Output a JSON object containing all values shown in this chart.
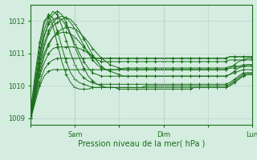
{
  "bg_color": "#d4ede0",
  "grid_color": "#c0c8d0",
  "line_color": "#1a6e1a",
  "marker": "+",
  "ylim": [
    1008.8,
    1012.5
  ],
  "yticks": [
    1009,
    1010,
    1011,
    1012
  ],
  "xlabel": "Pression niveau de la mer( hPa )",
  "xtick_labels": [
    "",
    "Sam",
    "",
    "Dim",
    "",
    "Lun"
  ],
  "xtick_positions": [
    0,
    30,
    60,
    90,
    120,
    150
  ],
  "total_hours": 150,
  "series": [
    [
      1009.0,
      1009.5,
      1010.0,
      1010.3,
      1010.45,
      1010.5,
      1010.5,
      1010.5,
      1010.5,
      1010.5,
      1010.5,
      1010.5,
      1010.5,
      1010.5,
      1010.5,
      1010.5,
      1010.5,
      1010.5,
      1010.5,
      1010.5,
      1010.5,
      1010.55,
      1010.55,
      1010.55,
      1010.55,
      1010.55,
      1010.55,
      1010.55,
      1010.55,
      1010.55,
      1010.55,
      1010.55,
      1010.55,
      1010.55,
      1010.55,
      1010.55,
      1010.55,
      1010.55,
      1010.55,
      1010.55,
      1010.55,
      1010.55,
      1010.55,
      1010.55,
      1010.55,
      1010.6,
      1010.6,
      1010.6,
      1010.6,
      1010.6,
      1010.6
    ],
    [
      1009.0,
      1009.6,
      1010.1,
      1010.5,
      1010.7,
      1010.8,
      1010.85,
      1010.85,
      1010.85,
      1010.85,
      1010.85,
      1010.85,
      1010.85,
      1010.85,
      1010.85,
      1010.85,
      1010.85,
      1010.85,
      1010.85,
      1010.85,
      1010.85,
      1010.85,
      1010.85,
      1010.85,
      1010.85,
      1010.85,
      1010.85,
      1010.85,
      1010.85,
      1010.85,
      1010.85,
      1010.85,
      1010.85,
      1010.85,
      1010.85,
      1010.85,
      1010.85,
      1010.85,
      1010.85,
      1010.85,
      1010.85,
      1010.85,
      1010.85,
      1010.85,
      1010.85,
      1010.9,
      1010.9,
      1010.9,
      1010.9,
      1010.9,
      1010.9
    ],
    [
      1009.0,
      1009.7,
      1010.3,
      1010.7,
      1011.0,
      1011.15,
      1011.2,
      1011.2,
      1011.2,
      1011.2,
      1011.2,
      1011.15,
      1011.1,
      1011.0,
      1010.9,
      1010.85,
      1010.85,
      1010.85,
      1010.85,
      1010.85,
      1010.85,
      1010.85,
      1010.85,
      1010.85,
      1010.85,
      1010.85,
      1010.85,
      1010.85,
      1010.85,
      1010.85,
      1010.85,
      1010.85,
      1010.85,
      1010.85,
      1010.85,
      1010.85,
      1010.85,
      1010.85,
      1010.85,
      1010.85,
      1010.85,
      1010.85,
      1010.85,
      1010.85,
      1010.85,
      1010.9,
      1010.9,
      1010.9,
      1010.9,
      1010.9,
      1010.9
    ],
    [
      1009.0,
      1009.8,
      1010.5,
      1011.0,
      1011.3,
      1011.5,
      1011.6,
      1011.65,
      1011.65,
      1011.6,
      1011.5,
      1011.35,
      1011.2,
      1011.05,
      1010.9,
      1010.8,
      1010.75,
      1010.75,
      1010.75,
      1010.75,
      1010.75,
      1010.75,
      1010.75,
      1010.75,
      1010.75,
      1010.75,
      1010.75,
      1010.75,
      1010.75,
      1010.75,
      1010.75,
      1010.75,
      1010.75,
      1010.75,
      1010.75,
      1010.75,
      1010.75,
      1010.75,
      1010.75,
      1010.75,
      1010.75,
      1010.75,
      1010.75,
      1010.75,
      1010.75,
      1010.8,
      1010.8,
      1010.8,
      1010.8,
      1010.8,
      1010.8
    ],
    [
      1009.0,
      1009.9,
      1010.7,
      1011.3,
      1011.7,
      1011.95,
      1012.1,
      1012.15,
      1012.1,
      1011.95,
      1011.75,
      1011.5,
      1011.25,
      1011.0,
      1010.8,
      1010.65,
      1010.55,
      1010.5,
      1010.5,
      1010.5,
      1010.5,
      1010.5,
      1010.5,
      1010.5,
      1010.5,
      1010.5,
      1010.5,
      1010.5,
      1010.5,
      1010.5,
      1010.5,
      1010.5,
      1010.5,
      1010.5,
      1010.5,
      1010.5,
      1010.5,
      1010.5,
      1010.5,
      1010.5,
      1010.5,
      1010.5,
      1010.5,
      1010.5,
      1010.5,
      1010.55,
      1010.55,
      1010.6,
      1010.65,
      1010.65,
      1010.65
    ],
    [
      1009.05,
      1010.0,
      1010.85,
      1011.5,
      1011.95,
      1012.2,
      1012.3,
      1012.2,
      1011.95,
      1011.6,
      1011.3,
      1011.0,
      1010.75,
      1010.55,
      1010.4,
      1010.35,
      1010.3,
      1010.3,
      1010.3,
      1010.3,
      1010.3,
      1010.3,
      1010.3,
      1010.3,
      1010.3,
      1010.3,
      1010.3,
      1010.3,
      1010.3,
      1010.3,
      1010.3,
      1010.3,
      1010.3,
      1010.3,
      1010.3,
      1010.3,
      1010.3,
      1010.3,
      1010.3,
      1010.3,
      1010.3,
      1010.3,
      1010.3,
      1010.3,
      1010.3,
      1010.35,
      1010.4,
      1010.45,
      1010.5,
      1010.5,
      1010.5
    ],
    [
      1009.1,
      1010.1,
      1011.0,
      1011.7,
      1012.1,
      1012.3,
      1012.2,
      1011.85,
      1011.4,
      1011.0,
      1010.65,
      1010.4,
      1010.25,
      1010.15,
      1010.1,
      1010.05,
      1010.05,
      1010.05,
      1010.05,
      1010.05,
      1010.05,
      1010.05,
      1010.05,
      1010.05,
      1010.05,
      1010.05,
      1010.05,
      1010.05,
      1010.05,
      1010.05,
      1010.05,
      1010.05,
      1010.05,
      1010.05,
      1010.05,
      1010.05,
      1010.05,
      1010.05,
      1010.05,
      1010.05,
      1010.05,
      1010.05,
      1010.05,
      1010.05,
      1010.05,
      1010.1,
      1010.2,
      1010.3,
      1010.4,
      1010.4,
      1010.4
    ],
    [
      1009.2,
      1010.25,
      1011.2,
      1011.9,
      1012.2,
      1012.1,
      1011.7,
      1011.2,
      1010.75,
      1010.4,
      1010.2,
      1010.1,
      1010.05,
      1010.0,
      1009.95,
      1009.95,
      1009.95,
      1009.95,
      1009.95,
      1009.95,
      1009.95,
      1009.95,
      1009.95,
      1009.95,
      1009.95,
      1009.95,
      1009.95,
      1009.95,
      1009.95,
      1009.95,
      1009.95,
      1009.95,
      1009.95,
      1009.95,
      1009.95,
      1009.95,
      1009.95,
      1009.95,
      1009.95,
      1009.95,
      1009.95,
      1009.95,
      1009.95,
      1009.95,
      1009.95,
      1010.0,
      1010.1,
      1010.2,
      1010.3,
      1010.35,
      1010.35
    ],
    [
      1009.3,
      1010.4,
      1011.35,
      1012.0,
      1012.15,
      1011.85,
      1011.3,
      1010.75,
      1010.35,
      1010.1,
      1009.95,
      1009.9,
      1009.9,
      1009.9,
      1009.95,
      1009.95,
      1009.95,
      1009.95,
      1009.95,
      1009.95,
      1009.95,
      1009.95,
      1009.95,
      1009.95,
      1009.95,
      1009.95,
      1010.0,
      1010.0,
      1010.0,
      1010.0,
      1010.0,
      1010.0,
      1010.0,
      1010.0,
      1010.0,
      1010.0,
      1010.0,
      1010.0,
      1010.0,
      1010.0,
      1010.0,
      1010.0,
      1010.0,
      1010.0,
      1010.0,
      1010.05,
      1010.15,
      1010.25,
      1010.35,
      1010.4,
      1010.4
    ],
    [
      1009.1,
      1010.0,
      1010.9,
      1011.55,
      1011.9,
      1012.05,
      1012.1,
      1012.05,
      1011.85,
      1011.55,
      1011.2,
      1010.85,
      1010.55,
      1010.3,
      1010.15,
      1010.05,
      1010.0,
      1009.95,
      1009.95,
      1009.95,
      1009.9,
      1009.9,
      1009.9,
      1009.9,
      1009.9,
      1009.9,
      1009.9,
      1009.9,
      1009.9,
      1009.9,
      1009.9,
      1009.9,
      1009.9,
      1009.9,
      1009.9,
      1009.9,
      1009.9,
      1009.95,
      1009.95,
      1009.95,
      1009.95,
      1009.95,
      1009.95,
      1009.95,
      1009.95,
      1010.0,
      1010.1,
      1010.2,
      1010.3,
      1010.35,
      1010.35
    ],
    [
      1009.0,
      1009.8,
      1010.6,
      1011.2,
      1011.6,
      1011.85,
      1011.95,
      1012.05,
      1012.1,
      1012.05,
      1011.9,
      1011.7,
      1011.45,
      1011.2,
      1010.95,
      1010.75,
      1010.6,
      1010.5,
      1010.45,
      1010.4,
      1010.35,
      1010.3,
      1010.3,
      1010.3,
      1010.3,
      1010.3,
      1010.3,
      1010.3,
      1010.3,
      1010.3,
      1010.3,
      1010.3,
      1010.3,
      1010.3,
      1010.3,
      1010.3,
      1010.3,
      1010.3,
      1010.3,
      1010.3,
      1010.3,
      1010.3,
      1010.3,
      1010.3,
      1010.3,
      1010.35,
      1010.45,
      1010.55,
      1010.6,
      1010.65,
      1010.65
    ],
    [
      1009.0,
      1009.65,
      1010.35,
      1010.9,
      1011.25,
      1011.5,
      1011.65,
      1011.75,
      1011.8,
      1011.8,
      1011.75,
      1011.65,
      1011.5,
      1011.35,
      1011.15,
      1011.0,
      1010.85,
      1010.75,
      1010.65,
      1010.6,
      1010.55,
      1010.5,
      1010.5,
      1010.5,
      1010.5,
      1010.5,
      1010.5,
      1010.5,
      1010.5,
      1010.5,
      1010.5,
      1010.5,
      1010.5,
      1010.5,
      1010.5,
      1010.5,
      1010.5,
      1010.5,
      1010.5,
      1010.5,
      1010.5,
      1010.5,
      1010.5,
      1010.5,
      1010.5,
      1010.55,
      1010.65,
      1010.75,
      1010.8,
      1010.85,
      1010.85
    ]
  ]
}
